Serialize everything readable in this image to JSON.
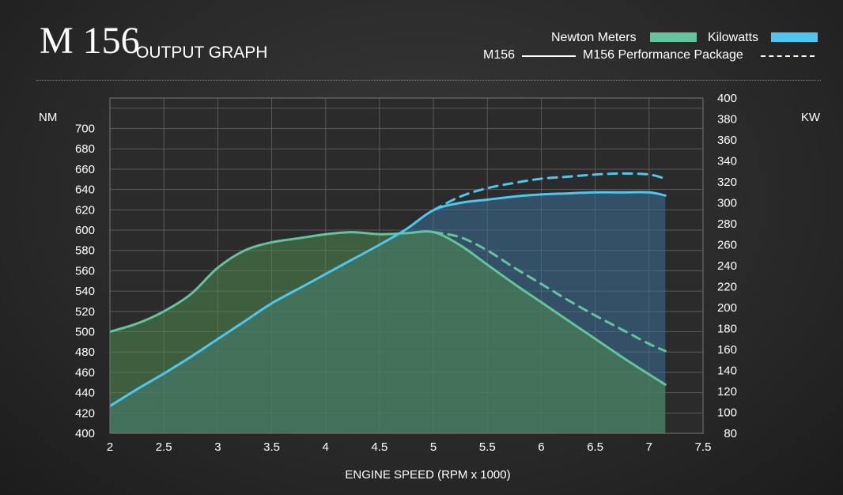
{
  "header": {
    "model": "M 156",
    "subtitle": "OUTPUT GRAPH"
  },
  "legend": {
    "torque_label": "Newton Meters",
    "power_label": "Kilowatts",
    "standard_label": "M156",
    "performance_label": "M156 Performance Package",
    "torque_color": "#62c49a",
    "power_color": "#4cc7f0"
  },
  "chart_data": {
    "type": "line",
    "title": "M 156 OUTPUT GRAPH",
    "xlabel": "ENGINE SPEED (RPM x 1000)",
    "ylabel": "NM",
    "y2label": "KW",
    "xlim": [
      2,
      7.5
    ],
    "ylim": [
      400,
      730
    ],
    "y2lim": [
      80,
      400
    ],
    "grid": true,
    "legend_position": "top-right",
    "x_ticks": [
      "2",
      "2.5",
      "3",
      "3.5",
      "4",
      "4.5",
      "5",
      "5.5",
      "6",
      "6.5",
      "7",
      "7.5"
    ],
    "y_ticks": [
      "400",
      "420",
      "440",
      "460",
      "480",
      "500",
      "520",
      "540",
      "560",
      "580",
      "600",
      "620",
      "640",
      "660",
      "680",
      "700"
    ],
    "y2_ticks": [
      "80",
      "100",
      "120",
      "140",
      "160",
      "180",
      "200",
      "220",
      "240",
      "260",
      "280",
      "300",
      "320",
      "340",
      "360",
      "380",
      "400"
    ],
    "series": [
      {
        "name": "M156 Torque (Newton Meters)",
        "axis": "left",
        "style": "solid",
        "color": "#62c49a",
        "x": [
          2.0,
          2.25,
          2.5,
          2.75,
          3.0,
          3.25,
          3.5,
          3.75,
          4.0,
          4.25,
          4.5,
          4.75,
          5.0,
          5.25,
          5.5,
          5.75,
          6.0,
          6.25,
          6.5,
          6.75,
          7.0,
          7.15
        ],
        "y": [
          500,
          508,
          520,
          537,
          563,
          580,
          588,
          592,
          596,
          598,
          596,
          597,
          598,
          585,
          566,
          547,
          529,
          511,
          493,
          475,
          458,
          448
        ]
      },
      {
        "name": "M156 Power (Kilowatts)",
        "axis": "right",
        "style": "solid",
        "color": "#4cc7f0",
        "x": [
          2.0,
          2.25,
          2.5,
          2.75,
          3.0,
          3.25,
          3.5,
          3.75,
          4.0,
          4.25,
          4.5,
          4.75,
          5.0,
          5.25,
          5.5,
          5.75,
          6.0,
          6.25,
          6.5,
          6.75,
          7.0,
          7.15
        ],
        "y": [
          106,
          122,
          137,
          153,
          170,
          187,
          204,
          218,
          232,
          246,
          260,
          275,
          293,
          300,
          303,
          306,
          308,
          309,
          310,
          310,
          310,
          307
        ]
      },
      {
        "name": "M156 Performance Package Torque",
        "axis": "left",
        "style": "dashed",
        "color": "#62c49a",
        "x": [
          5.0,
          5.25,
          5.5,
          5.75,
          6.0,
          6.25,
          6.5,
          6.75,
          7.0,
          7.15
        ],
        "y": [
          598,
          593,
          580,
          563,
          547,
          531,
          516,
          502,
          488,
          481
        ]
      },
      {
        "name": "M156 Performance Package Power",
        "axis": "right",
        "style": "dashed",
        "color": "#4cc7f0",
        "x": [
          5.0,
          5.25,
          5.5,
          5.75,
          6.0,
          6.25,
          6.5,
          6.75,
          7.0,
          7.15
        ],
        "y": [
          293,
          306,
          314,
          319,
          323,
          325,
          327,
          328,
          327,
          323
        ]
      }
    ]
  }
}
